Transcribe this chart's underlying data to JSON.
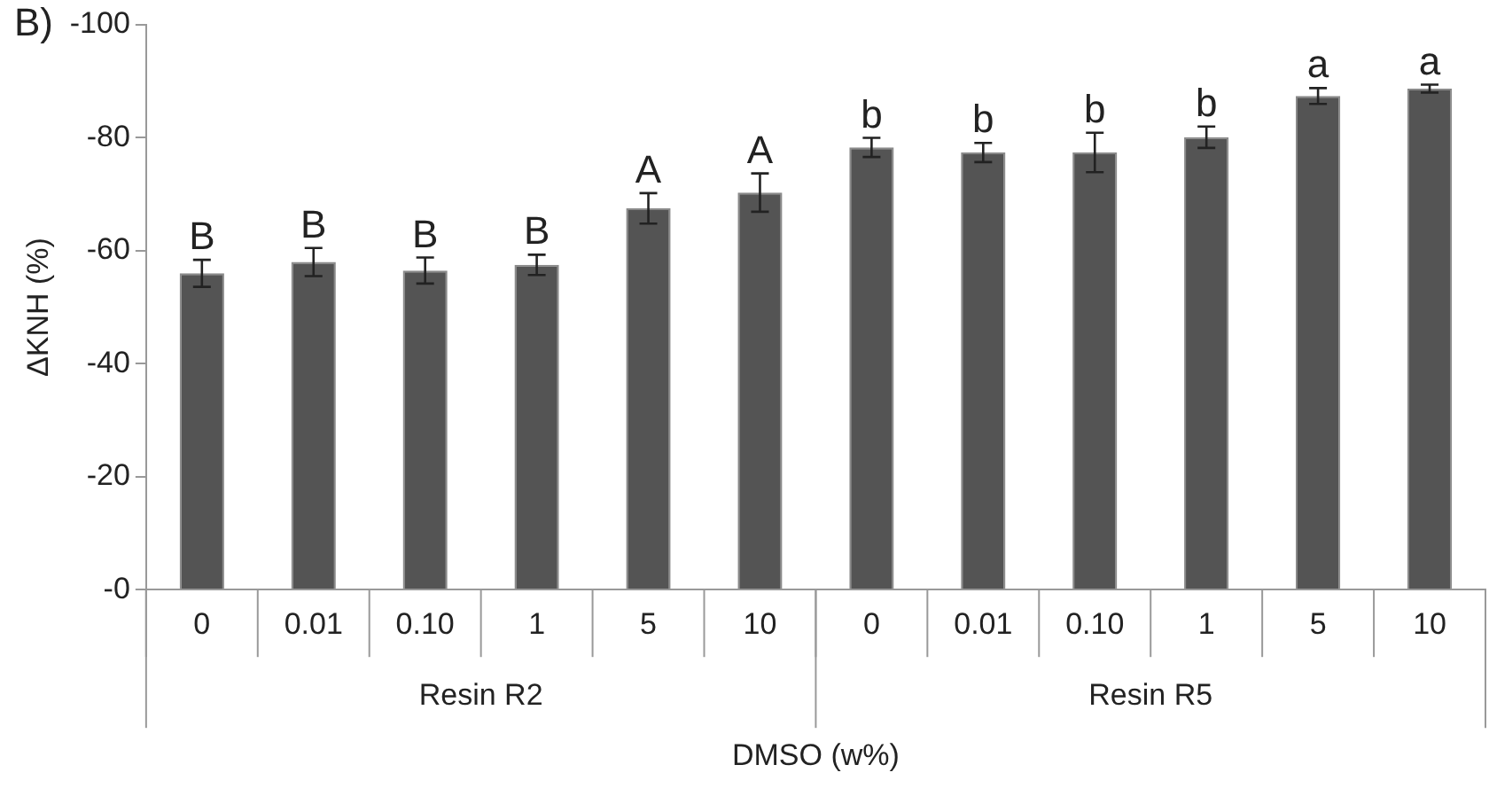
{
  "chart_data": {
    "type": "bar",
    "title": "B)",
    "xlabel": "DMSO (w%)",
    "ylabel": "ΔKNH (%)",
    "categories": [
      "0",
      "0.01",
      "0.10",
      "1",
      "5",
      "10",
      "0",
      "0.01",
      "0.10",
      "1",
      "5",
      "10"
    ],
    "values": [
      -56,
      -58,
      -56.5,
      -57.5,
      -67.5,
      -70.3,
      -78.3,
      -77.4,
      -77.4,
      -80.1,
      -87.4,
      -88.7
    ],
    "errors": [
      2.4,
      2.5,
      2.3,
      1.8,
      2.7,
      3.4,
      1.7,
      1.7,
      3.5,
      1.9,
      1.4,
      0.7
    ],
    "value_labels": [
      "B",
      "B",
      "B",
      "B",
      "A",
      "A",
      "b",
      "b",
      "b",
      "b",
      "a",
      "a"
    ],
    "color": "#545454",
    "ylim": [
      0,
      -100
    ],
    "yticks": [
      {
        "value": 0,
        "label": "-0"
      },
      -20,
      -40,
      -60,
      -80,
      -100
    ],
    "annotations": [
      "Resin R2",
      "Resin R5"
    ],
    "grid": false,
    "legend": false
  }
}
